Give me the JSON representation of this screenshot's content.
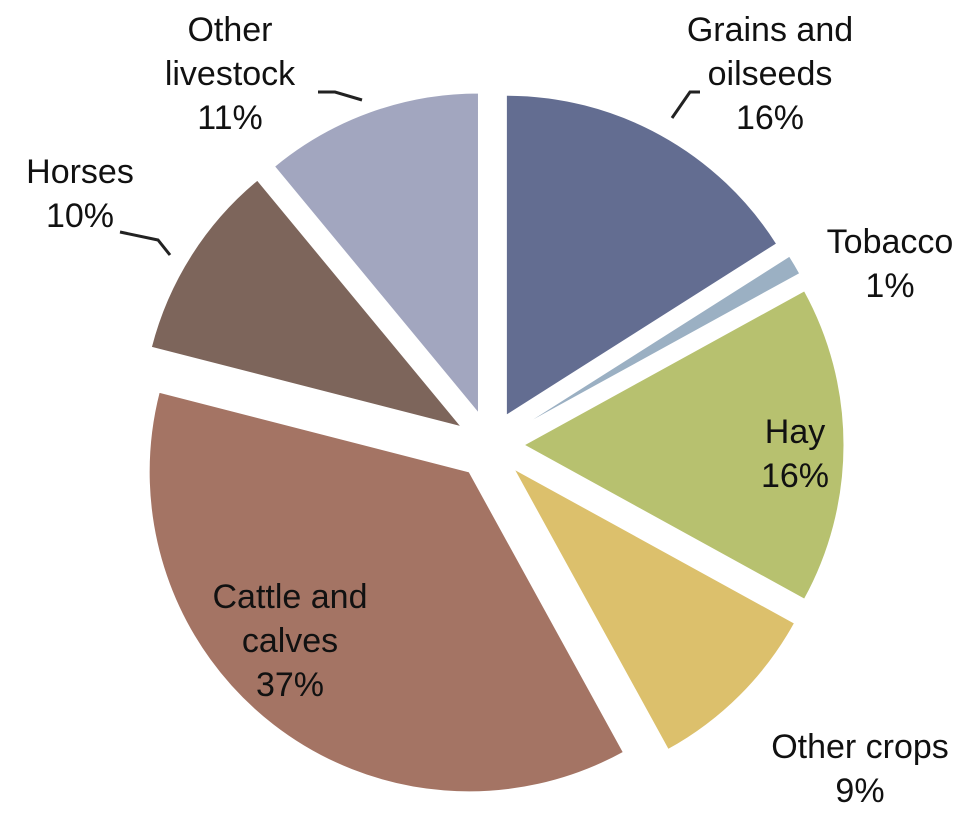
{
  "chart_data": {
    "type": "pie",
    "categories": [
      "Grains and oilseeds",
      "Tobacco",
      "Hay",
      "Other crops",
      "Cattle and calves",
      "Horses",
      "Other livestock"
    ],
    "values": [
      16,
      1,
      16,
      9,
      37,
      10,
      11
    ],
    "value_labels": [
      "16%",
      "1%",
      "16%",
      "9%",
      "37%",
      "10%",
      "11%"
    ],
    "colors": [
      "#636d91",
      "#9bb0c3",
      "#b7c16f",
      "#dcc06c",
      "#a47464",
      "#7d655b",
      "#a2a6bf"
    ]
  }
}
